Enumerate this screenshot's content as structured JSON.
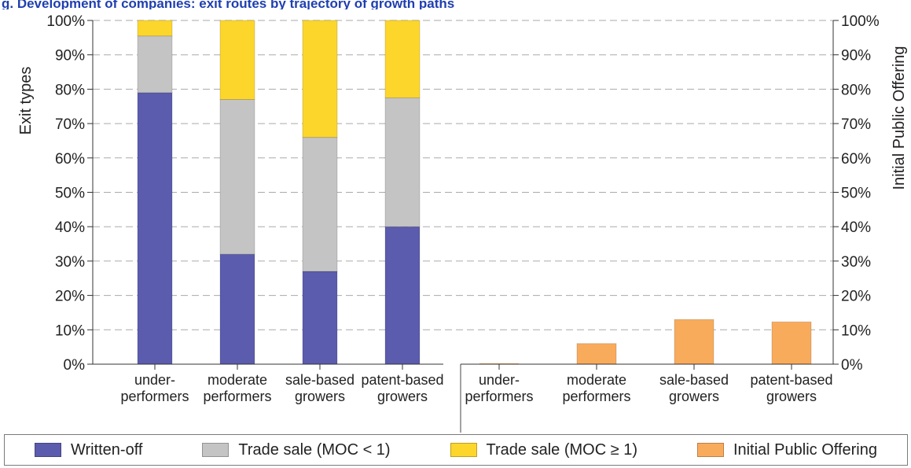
{
  "title": "g. Development of companies: exit routes by trajectory of growth paths",
  "colors": {
    "written_off": "#5b5cad",
    "trade_sale_lt1": "#c4c4c4",
    "trade_sale_ge1": "#fdd62b",
    "ipo": "#f9ab5c",
    "title": "#1f3fb0",
    "grid": "#aaaaaa"
  },
  "chart_data": [
    {
      "type": "bar",
      "stacked": true,
      "ylabel": "Exit types",
      "ylim": [
        0,
        100
      ],
      "yticks": [
        "0%",
        "10%",
        "20%",
        "30%",
        "40%",
        "50%",
        "60%",
        "70%",
        "80%",
        "90%",
        "100%"
      ],
      "categories": [
        [
          "under-",
          "performers"
        ],
        [
          "moderate",
          "performers"
        ],
        [
          "sale-based",
          "growers"
        ],
        [
          "patent-based",
          "growers"
        ]
      ],
      "series": [
        {
          "name": "Written-off",
          "color": "#5b5cad",
          "values": [
            79,
            32,
            27,
            40
          ]
        },
        {
          "name": "Trade sale (MOC < 1)",
          "color": "#c4c4c4",
          "values": [
            16.5,
            45,
            39,
            37.5
          ]
        },
        {
          "name": "Trade sale (MOC ≥ 1)",
          "color": "#fdd62b",
          "values": [
            4.5,
            23,
            34,
            22.5
          ]
        }
      ]
    },
    {
      "type": "bar",
      "ylabel": "Initial Public Offering",
      "ylim": [
        0,
        100
      ],
      "yticks": [
        "0%",
        "10%",
        "20%",
        "30%",
        "40%",
        "50%",
        "60%",
        "70%",
        "80%",
        "90%",
        "100%"
      ],
      "categories": [
        [
          "under-",
          "performers"
        ],
        [
          "moderate",
          "performers"
        ],
        [
          "sale-based",
          "growers"
        ],
        [
          "patent-based",
          "growers"
        ]
      ],
      "series": [
        {
          "name": "Initial Public Offering",
          "color": "#f9ab5c",
          "values": [
            0,
            6,
            13,
            12.3
          ]
        }
      ]
    }
  ],
  "legend": [
    {
      "label": "Written-off",
      "color": "#5b5cad"
    },
    {
      "label": "Trade sale (MOC < 1)",
      "color": "#c4c4c4"
    },
    {
      "label": "Trade sale (MOC ≥ 1)",
      "color": "#fdd62b"
    },
    {
      "label": "Initial Public Offering",
      "color": "#f9ab5c"
    }
  ]
}
